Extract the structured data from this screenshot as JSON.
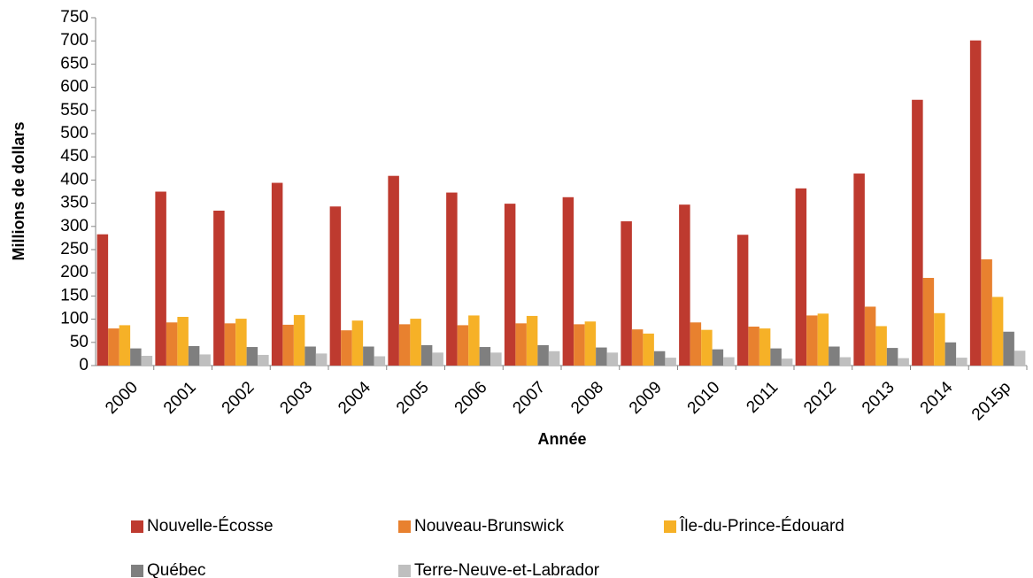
{
  "chart_data": {
    "type": "bar",
    "y_label": "Millions de dollars",
    "x_label": "Année",
    "categories": [
      "2000",
      "2001",
      "2002",
      "2003",
      "2004",
      "2005",
      "2006",
      "2007",
      "2008",
      "2009",
      "2010",
      "2011",
      "2012",
      "2013",
      "2014",
      "2015p"
    ],
    "series": [
      {
        "name": "Nouvelle-Écosse",
        "color": "#be3a2f",
        "values": [
          283,
          375,
          334,
          394,
          343,
          409,
          373,
          349,
          363,
          311,
          347,
          282,
          382,
          414,
          573,
          701
        ]
      },
      {
        "name": "Nouveau-Brunswick",
        "color": "#e8812f",
        "values": [
          80,
          93,
          91,
          88,
          76,
          89,
          87,
          91,
          89,
          78,
          93,
          84,
          108,
          127,
          189,
          229
        ]
      },
      {
        "name": "Île-du-Prince-Édouard",
        "color": "#f6b127",
        "values": [
          87,
          105,
          101,
          109,
          97,
          101,
          108,
          107,
          95,
          69,
          77,
          80,
          112,
          85,
          113,
          148
        ]
      },
      {
        "name": "Québec",
        "color": "#7f7f7f",
        "values": [
          37,
          42,
          40,
          41,
          41,
          44,
          40,
          44,
          39,
          31,
          35,
          37,
          41,
          38,
          50,
          73
        ]
      },
      {
        "name": "Terre-Neuve-et-Labrador",
        "color": "#bfbfbf",
        "values": [
          21,
          24,
          23,
          26,
          20,
          28,
          28,
          31,
          28,
          17,
          18,
          15,
          18,
          16,
          17,
          32
        ]
      }
    ],
    "ylim": [
      0,
      750
    ],
    "yticks": [
      0,
      50,
      100,
      150,
      200,
      250,
      300,
      350,
      400,
      450,
      500,
      550,
      600,
      650,
      700,
      750
    ],
    "grid": false,
    "legend": "bottom"
  }
}
